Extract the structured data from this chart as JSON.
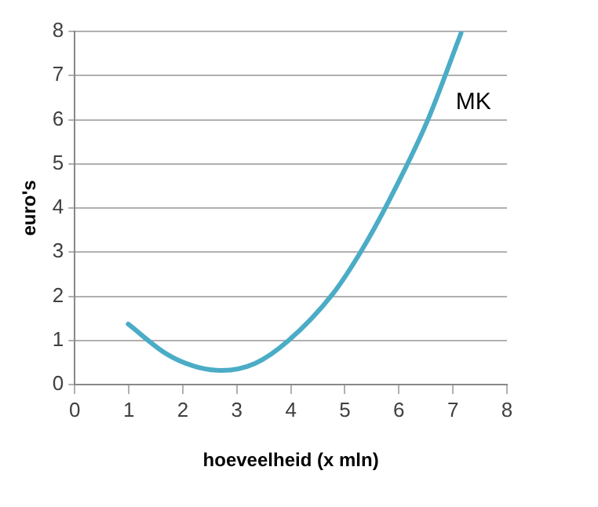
{
  "chart_data": {
    "type": "line",
    "xlabel": "hoeveelheid (x mln)",
    "ylabel": "euro's",
    "series": [
      {
        "name": "MK",
        "color": "#4bacc6",
        "x": [
          0.99,
          1.69,
          2.2,
          2.72,
          3.34,
          3.95,
          4.78,
          5.29,
          5.81,
          6.53,
          7.15
        ],
        "values": [
          1.37,
          0.7,
          0.42,
          0.32,
          0.48,
          0.99,
          2.06,
          3.0,
          4.15,
          5.98,
          7.96
        ]
      }
    ],
    "xlim": [
      0,
      8
    ],
    "xticks": [
      0,
      1,
      2,
      3,
      4,
      5,
      6,
      7,
      8
    ],
    "ylim": [
      0,
      8
    ],
    "yticks": [
      0,
      1,
      2,
      3,
      4,
      5,
      6,
      7,
      8
    ],
    "grid": "y",
    "legend": false,
    "marker": "none",
    "line_style": "solid"
  }
}
